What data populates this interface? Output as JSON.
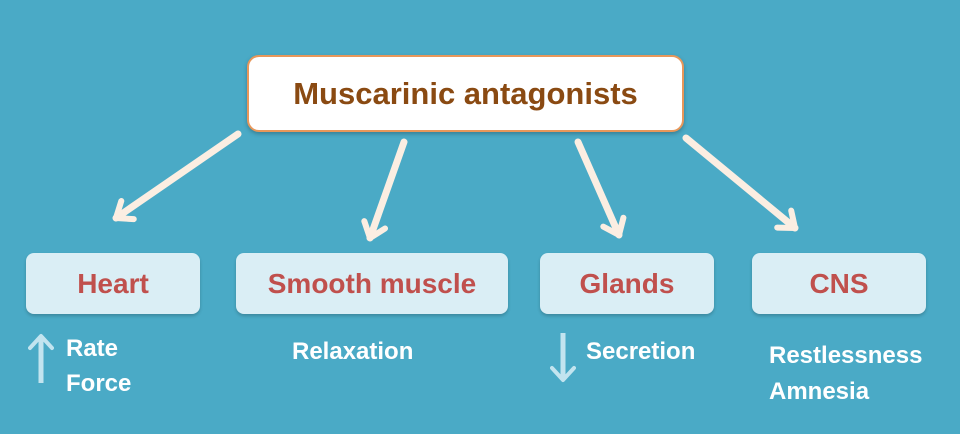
{
  "root": {
    "label": "Muscarinic antagonists"
  },
  "effects": [
    {
      "target": "Heart",
      "notes": [
        "Rate",
        "Force"
      ],
      "direction": "up"
    },
    {
      "target": "Smooth muscle",
      "notes": [
        "Relaxation"
      ]
    },
    {
      "target": "Glands",
      "notes": [
        "Secretion"
      ],
      "direction": "down"
    },
    {
      "target": "CNS",
      "notes": [
        "Restlessness",
        "Amnesia"
      ]
    }
  ],
  "colors": {
    "background": "#4aaac6",
    "box_fill": "#daeef5",
    "root_border": "#e8975a",
    "root_text": "#8a4a12",
    "target_text": "#c0504d",
    "arrow": "#fbeee2",
    "indicator": "#c2e4ef"
  }
}
